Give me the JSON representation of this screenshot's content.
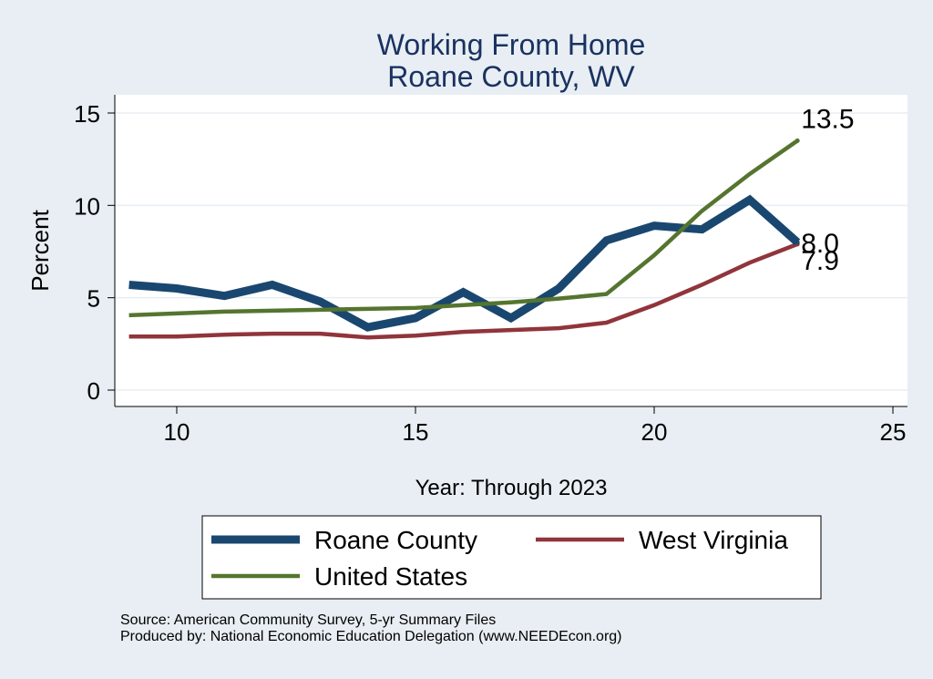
{
  "chart_data": {
    "type": "line",
    "title": "Working From Home",
    "subtitle": "Roane County, WV",
    "xlabel": "Year: Through 2023",
    "ylabel": "Percent",
    "xlim": [
      9,
      25
    ],
    "ylim": [
      0,
      15
    ],
    "x_ticks": [
      10,
      15,
      20,
      25
    ],
    "y_ticks": [
      0,
      5,
      10,
      15
    ],
    "grid": true,
    "legend_position": "bottom",
    "x": [
      9,
      10,
      11,
      12,
      13,
      14,
      15,
      16,
      17,
      18,
      19,
      20,
      21,
      22,
      23
    ],
    "series": [
      {
        "name": "Roane County",
        "color": "#1a476f",
        "values": [
          5.7,
          5.5,
          5.1,
          5.7,
          4.8,
          3.4,
          3.9,
          5.3,
          3.9,
          5.5,
          8.1,
          8.9,
          8.7,
          10.3,
          8.0
        ],
        "end_label": "8.0"
      },
      {
        "name": "West Virginia",
        "color": "#90353b",
        "values": [
          2.9,
          2.9,
          3.0,
          3.05,
          3.05,
          2.85,
          2.95,
          3.15,
          3.25,
          3.35,
          3.65,
          4.6,
          5.7,
          6.9,
          7.9
        ],
        "end_label": "7.9"
      },
      {
        "name": "United States",
        "color": "#55752f",
        "values": [
          4.05,
          4.15,
          4.25,
          4.3,
          4.35,
          4.4,
          4.45,
          4.6,
          4.75,
          4.95,
          5.2,
          7.3,
          9.7,
          11.7,
          13.5
        ],
        "end_label": "13.5"
      }
    ]
  },
  "notes": {
    "source": "Source: American Community Survey, 5-yr Summary Files",
    "produced_by": "Produced by: National Economic Education Delegation (www.NEEDEcon.org)"
  }
}
